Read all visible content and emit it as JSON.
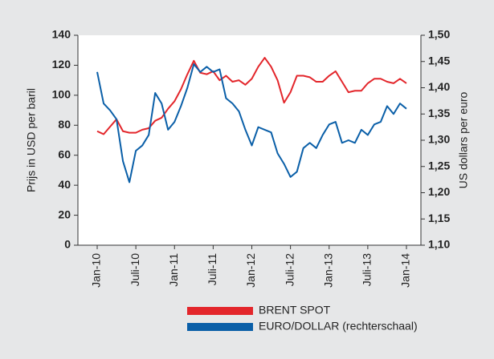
{
  "chart_data": {
    "type": "line",
    "y_label": "Prijs in USD per baril",
    "y2_label": "US dollars per euro",
    "categories": [
      "Jan-10",
      null,
      null,
      null,
      null,
      null,
      "Juli-10",
      null,
      null,
      null,
      null,
      null,
      "Jan-11",
      null,
      null,
      null,
      null,
      null,
      "Juli-11",
      null,
      null,
      null,
      null,
      null,
      "Jan-12",
      null,
      null,
      null,
      null,
      null,
      "Juli-12",
      null,
      null,
      null,
      null,
      null,
      "Jan-13",
      null,
      null,
      null,
      null,
      null,
      "Juli-13",
      null,
      null,
      null,
      null,
      null,
      "Jan-14"
    ],
    "series": [
      {
        "name": "BRENT SPOT",
        "color": "#e3262b",
        "axis": "y",
        "values": [
          76,
          74,
          79,
          84,
          76,
          75,
          75,
          77,
          78,
          83,
          85,
          91,
          96,
          104,
          114,
          123,
          115,
          114,
          116,
          110,
          113,
          109,
          110,
          107,
          111,
          119,
          125,
          119,
          110,
          95,
          102,
          113,
          113,
          112,
          109,
          109,
          113,
          116,
          109,
          102,
          103,
          103,
          108,
          111,
          111,
          109,
          108,
          111,
          108
        ]
      },
      {
        "name": "EURO/DOLLAR (rechterschaal)",
        "color": "#0a5fa8",
        "axis": "y2",
        "values": [
          1.43,
          1.37,
          1.357,
          1.34,
          1.26,
          1.22,
          1.28,
          1.29,
          1.31,
          1.39,
          1.37,
          1.32,
          1.335,
          1.365,
          1.4,
          1.445,
          1.43,
          1.44,
          1.43,
          1.435,
          1.38,
          1.37,
          1.355,
          1.32,
          1.29,
          1.325,
          1.32,
          1.315,
          1.275,
          1.255,
          1.23,
          1.24,
          1.285,
          1.295,
          1.285,
          1.31,
          1.33,
          1.335,
          1.295,
          1.3,
          1.295,
          1.32,
          1.31,
          1.33,
          1.335,
          1.365,
          1.35,
          1.37,
          1.36
        ]
      }
    ],
    "ylim": [
      0,
      140
    ],
    "yticks": [
      0,
      20,
      40,
      60,
      80,
      100,
      120,
      140
    ],
    "y2lim": [
      1.1,
      1.5
    ],
    "y2ticks": [
      {
        "value": 1.1,
        "label": "1,10"
      },
      {
        "value": 1.15,
        "label": "1,15"
      },
      {
        "value": 1.2,
        "label": "1,20"
      },
      {
        "value": 1.25,
        "label": "1,25"
      },
      {
        "value": 1.3,
        "label": "1,30"
      },
      {
        "value": 1.35,
        "label": "1,35"
      },
      {
        "value": 1.4,
        "label": "1,40"
      },
      {
        "value": 1.45,
        "label": "1,45"
      },
      {
        "value": 1.5,
        "label": "1,50"
      }
    ]
  }
}
